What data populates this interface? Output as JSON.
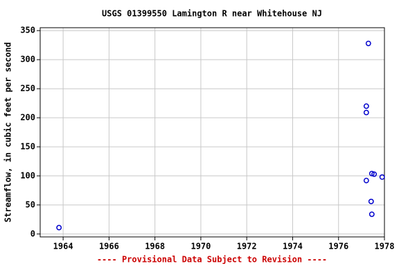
{
  "chart_data": {
    "type": "scatter",
    "title": "USGS 01399550 Lamington R near Whitehouse NJ",
    "y_label": "Streamflow, in cubic feet per second",
    "footer": "---- Provisional Data Subject to Revision ----",
    "footer_color": "#cc0000",
    "color": "#0000cc",
    "x": [
      1963.82,
      1977.3,
      1977.21,
      1977.21,
      1977.21,
      1977.45,
      1977.55,
      1977.42,
      1977.45,
      1977.9
    ],
    "values": [
      11,
      328,
      220,
      209,
      92,
      104,
      103,
      56,
      34,
      98
    ],
    "xlim": [
      1963,
      1978
    ],
    "xticks": [
      1964,
      1966,
      1968,
      1970,
      1972,
      1974,
      1976,
      1978
    ],
    "ylim": [
      -5,
      355
    ],
    "yticks": [
      0,
      50,
      100,
      150,
      200,
      250,
      300,
      350
    ],
    "grid": true
  }
}
